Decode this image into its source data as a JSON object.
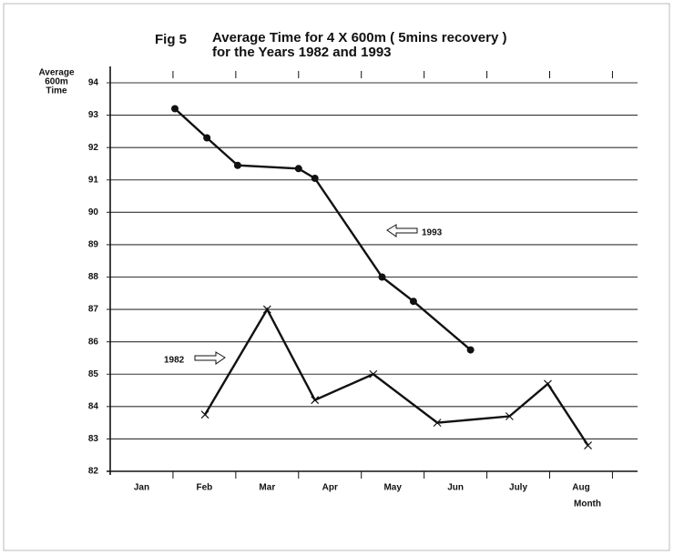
{
  "chart_data": {
    "type": "line",
    "figure": "Fig 5",
    "title": [
      "Average Time for 4 X 600m ( 5mins recovery )",
      "for the Years 1982 and 1993"
    ],
    "ylabel": [
      "Average",
      "600m",
      "Time"
    ],
    "xlabel": "Month",
    "categories": [
      "Jan",
      "Feb",
      "Mar",
      "Apr",
      "May",
      "Jun",
      "July",
      "Aug"
    ],
    "xlim": [
      0.5,
      8.9
    ],
    "ylim": [
      82,
      94
    ],
    "yticks": [
      82,
      83,
      84,
      85,
      86,
      87,
      88,
      89,
      90,
      91,
      92,
      93,
      94
    ],
    "grid": true,
    "series": [
      {
        "name": "1993",
        "color": "#111111",
        "marker": "dot",
        "x": [
          1.53,
          2.04,
          2.53,
          3.5,
          3.76,
          4.83,
          5.33,
          6.24
        ],
        "values": [
          93.2,
          92.3,
          91.45,
          91.35,
          91.05,
          88.0,
          87.25,
          85.75
        ]
      },
      {
        "name": "1982",
        "color": "#111111",
        "marker": "cross",
        "x": [
          2.01,
          3.0,
          3.76,
          4.69,
          5.71,
          6.86,
          7.47,
          8.11
        ],
        "values": [
          83.75,
          87.0,
          84.2,
          85.0,
          83.5,
          83.7,
          84.7,
          82.8
        ]
      }
    ]
  }
}
